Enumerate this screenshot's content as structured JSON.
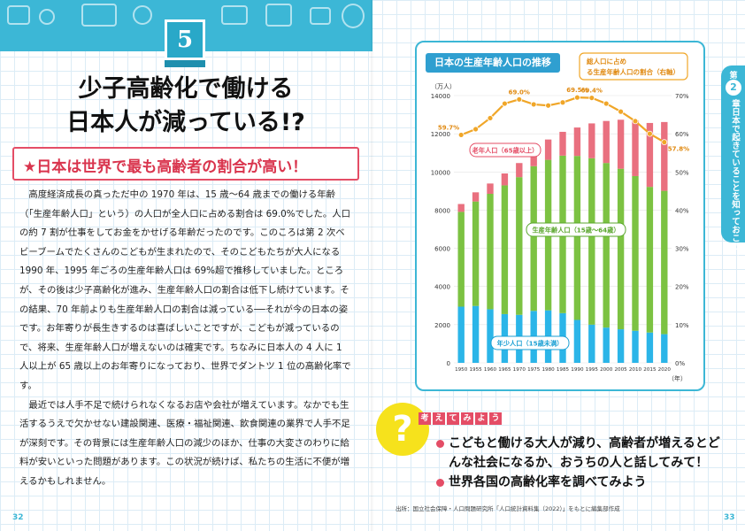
{
  "left_page": {
    "chapter_number": "5",
    "title_line1": "少子高齢化で働ける",
    "title_line2": "日本人が減っている!?",
    "subheading": "★日本は世界で最も高齢者の割合が高い！",
    "paragraphs": [
      "高度経済成長の真っただ中の 1970 年は、15 歳～64 歳までの働ける年齢（「生産年齢人口」という）の人口が全人口に占める割合は 69.0%でした。人口の約 7 割が仕事をしてお金をかせげる年齢だったのです。このころは第 2 次ベビーブームでたくさんのこどもが生まれたので、そのこどもたちが大人になる 1990 年、1995 年ごろの生産年齢人口は 69%超で推移していました。ところが、その後は少子高齢化が進み、生産年齢人口の割合は低下し続けています。その結果、70 年前よりも生産年齢人口の割合は減っている──それが今の日本の姿です。お年寄りが長生きするのは喜ばしいことですが、こどもが減っているので、将来、生産年齢人口が増えないのは確実です。ちなみに日本人の 4 人に 1 人以上が 65 歳以上のお年寄りになっており、世界でダントツ 1 位の高齢化率です。",
      "最近では人手不足で続けられなくなるお店や会社が増えています。なかでも生活するうえで欠かせない建設関連、医療・福祉関連、飲食関連の業界で人手不足が深刻です。その背景には生産年齢人口の減少のほか、仕事の大変さのわりに給料が安いといった問題があります。この状況が続けば、私たちの生活に不便が増えるかもしれません。"
    ],
    "page_number": "32"
  },
  "right_page": {
    "side_tab": {
      "label": "第",
      "number": "2",
      "suffix": "章",
      "text": "日本で起きていることを知っておこう！"
    },
    "think": {
      "tag_chars": [
        "考",
        "え",
        "て",
        "み",
        "よ",
        "う"
      ],
      "items": [
        "こどもと働ける大人が減り、高齢者が増えるとどんな社会になるか、おうちの人と話してみて！",
        "世界各国の高齢化率を調べてみよう"
      ]
    },
    "source": "出所：国立社会保障・人口問題研究所「人口統計資料集（2022）」をもとに編集部作成",
    "page_number": "33"
  },
  "colors": {
    "accent_blue": "#3cb7d6",
    "red": "#e44d66",
    "green": "#7cc242",
    "cyan": "#2bb5e8",
    "orange": "#f0a628",
    "yellow": "#f6e21c"
  },
  "chart_data": {
    "type": "bar",
    "title": "日本の生産年齢人口の推移",
    "subtitle": "総人口に占める生産年齢人口の割合（右軸）",
    "ylabel_left": "（万人）",
    "xlabel": "（年）",
    "categories": [
      "1950",
      "1955",
      "1960",
      "1965",
      "1970",
      "1975",
      "1980",
      "1985",
      "1990",
      "1995",
      "2000",
      "2005",
      "2010",
      "2015",
      "2020"
    ],
    "ylim": [
      0,
      14000
    ],
    "yticks": [
      0,
      2000,
      4000,
      6000,
      8000,
      10000,
      12000,
      14000
    ],
    "y2lim": [
      0,
      70
    ],
    "y2ticks": [
      "0%",
      "10%",
      "20%",
      "30%",
      "40%",
      "50%",
      "60%",
      "70%"
    ],
    "stacked": true,
    "series": [
      {
        "name": "年少人口（15歳未満）",
        "color": "#2bb5e8",
        "values": [
          2943,
          2980,
          2807,
          2553,
          2515,
          2722,
          2751,
          2603,
          2249,
          2001,
          1847,
          1759,
          1680,
          1589,
          1503
        ]
      },
      {
        "name": "生産年齢人口（15歳～64歳）",
        "color": "#7cc242",
        "values": [
          4966,
          5473,
          6047,
          6744,
          7212,
          7581,
          7883,
          8251,
          8590,
          8716,
          8622,
          8409,
          8103,
          7629,
          7509
        ]
      },
      {
        "name": "老年人口（65歳以上）",
        "color": "#e9707f",
        "values": [
          411,
          479,
          540,
          624,
          739,
          887,
          1065,
          1247,
          1489,
          1826,
          2201,
          2567,
          2925,
          3347,
          3603
        ]
      }
    ],
    "line_series": {
      "name": "総人口に占める生産年齢人口の割合（右軸）",
      "color": "#f0a628",
      "values": [
        59.7,
        61.2,
        64.1,
        67.9,
        69.0,
        67.7,
        67.4,
        68.2,
        69.5,
        69.4,
        67.9,
        65.8,
        63.3,
        60.0,
        57.8
      ],
      "labels": {
        "0": "59.7%",
        "4": "69.0%",
        "8": "69.5%",
        "9": "69.4%",
        "14": "57.8%"
      }
    },
    "annotations": [
      {
        "text": "老年人口（65歳以上）",
        "series": 2
      },
      {
        "text": "生産年齢人口（15歳～64歳）",
        "series": 1
      },
      {
        "text": "年少人口（15歳未満）",
        "series": 0
      }
    ]
  }
}
